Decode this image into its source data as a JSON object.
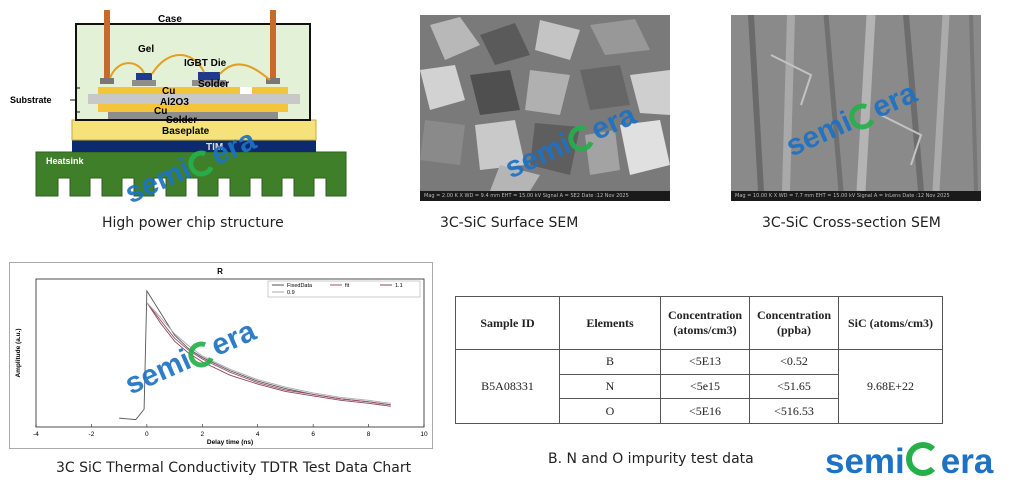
{
  "panels": {
    "chip": {
      "caption": "High power chip structure",
      "labels": {
        "case": "Case",
        "gel": "Gel",
        "igbt_die": "IGBT Die",
        "solder_top": "Solder",
        "cu_top": "Cu",
        "substrate": "Substrate",
        "al2o3": "Al2O3",
        "cu_bottom": "Cu",
        "solder_bottom": "Solder",
        "baseplate": "Baseplate",
        "tim": "TIM",
        "heatsink": "Heatsink"
      }
    },
    "surface_sem": {
      "caption": "3C-SiC Surface SEM",
      "info_bar": "Mag = 2.00 K X   WD = 9.4 mm   EHT = 15.00 kV   Signal A = SE2   Date :12 Nov 2025"
    },
    "cross_sem": {
      "caption": "3C-SiC Cross-section SEM",
      "info_bar": "Mag = 10.00 K X   WD = 7.7 mm   EHT = 15.00 kV   Signal A = InLens   Date :12 Nov 2025"
    },
    "tdtr": {
      "caption": "3C SiC Thermal Conductivity TDTR Test Data Chart"
    },
    "impurity": {
      "caption": "B. N and O impurity test data",
      "headers": [
        "Sample ID",
        "Elements",
        "Concentration (atoms/cm3)",
        "Concentration (ppba)",
        "SiC (atoms/cm3)"
      ],
      "sample_id": "B5A08331",
      "sic_value": "9.68E+22",
      "rows": [
        {
          "element": "B",
          "atoms": "<5E13",
          "ppba": "<0.52"
        },
        {
          "element": "N",
          "atoms": "<5e15",
          "ppba": "<51.65"
        },
        {
          "element": "O",
          "atoms": "<5E16",
          "ppba": "<516.53"
        }
      ]
    }
  },
  "watermark": {
    "pre": "semi",
    "post": "era"
  },
  "logo": {
    "pre": "semi",
    "post": "era"
  },
  "colors": {
    "brand_blue": "#1d72c4",
    "brand_green": "#25b04a"
  },
  "chart_data": {
    "type": "line",
    "title": "R",
    "xlabel": "Delay time (ns)",
    "ylabel": "Amplitude (a.u.)",
    "xlim": [
      -4,
      10
    ],
    "xticks": [
      -4,
      -2,
      0,
      2,
      4,
      6,
      8,
      10
    ],
    "legend": [
      "FixedData",
      "fit",
      "1.1",
      "0.9"
    ],
    "legend_position": "top-right",
    "series": [
      {
        "name": "FixedData",
        "x": [
          -1,
          -0.4,
          -0.1,
          0,
          0.5,
          1,
          1.5,
          2,
          3,
          4,
          5,
          6,
          7,
          8,
          8.8
        ],
        "y": [
          0.06,
          0.05,
          0.12,
          0.92,
          0.77,
          0.62,
          0.53,
          0.47,
          0.38,
          0.31,
          0.26,
          0.22,
          0.19,
          0.17,
          0.15
        ]
      },
      {
        "name": "fit",
        "x": [
          0,
          0.5,
          1,
          1.5,
          2,
          3,
          4,
          5,
          6,
          7,
          8,
          8.8
        ],
        "y": [
          0.84,
          0.72,
          0.6,
          0.52,
          0.46,
          0.37,
          0.3,
          0.25,
          0.22,
          0.19,
          0.17,
          0.15
        ]
      },
      {
        "name": "1.1",
        "x": [
          0,
          0.5,
          1,
          1.5,
          2,
          3,
          4,
          5,
          6,
          7,
          8,
          8.8
        ],
        "y": [
          0.84,
          0.7,
          0.58,
          0.5,
          0.44,
          0.35,
          0.29,
          0.24,
          0.21,
          0.18,
          0.16,
          0.14
        ]
      },
      {
        "name": "0.9",
        "x": [
          0,
          0.5,
          1,
          1.5,
          2,
          3,
          4,
          5,
          6,
          7,
          8,
          8.8
        ],
        "y": [
          0.84,
          0.74,
          0.63,
          0.55,
          0.48,
          0.39,
          0.32,
          0.27,
          0.23,
          0.2,
          0.18,
          0.16
        ]
      }
    ]
  }
}
